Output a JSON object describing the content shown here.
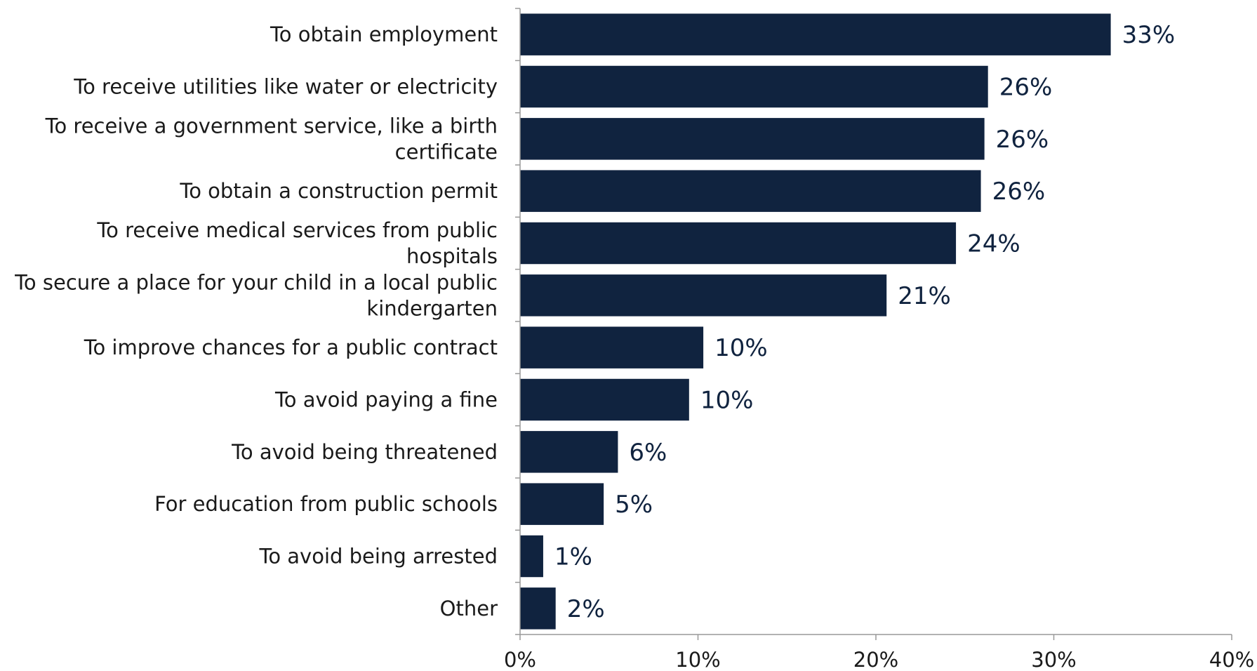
{
  "chart_data": {
    "type": "bar",
    "orientation": "horizontal",
    "categories": [
      "To obtain employment",
      "To receive utilities like water or electricity",
      "To receive a government service, like a birth certificate",
      "To obtain a construction permit",
      "To receive medical services from public hospitals",
      "To secure a place for your child in a local public kindergarten",
      "To improve chances for a public contract",
      "To avoid paying a fine",
      "To avoid being threatened",
      "For education from public schools",
      "To avoid being arrested",
      "Other"
    ],
    "category_lines": [
      [
        "To obtain employment"
      ],
      [
        "To receive utilities like water or electricity"
      ],
      [
        "To receive a government service, like a birth",
        "certificate"
      ],
      [
        "To obtain a construction permit"
      ],
      [
        "To receive medical services from public",
        "hospitals"
      ],
      [
        "To secure a place for your child in a local public",
        "kindergarten"
      ],
      [
        "To improve chances for a public contract"
      ],
      [
        "To avoid paying a fine"
      ],
      [
        "To avoid being threatened"
      ],
      [
        "For education from public schools"
      ],
      [
        "To avoid being arrested"
      ],
      [
        "Other"
      ]
    ],
    "values": [
      33.2,
      26.3,
      26.1,
      25.9,
      24.5,
      20.6,
      10.3,
      9.5,
      5.5,
      4.7,
      1.3,
      2.0
    ],
    "value_labels": [
      "33%",
      "26%",
      "26%",
      "26%",
      "24%",
      "21%",
      "10%",
      "10%",
      "6%",
      "5%",
      "1%",
      "2%"
    ],
    "xlim": [
      0,
      40
    ],
    "xticks": [
      0,
      10,
      20,
      30,
      40
    ],
    "xtick_labels": [
      "0%",
      "10%",
      "20%",
      "30%",
      "40%"
    ],
    "bar_color": "#10233f",
    "axis_color": "#999999",
    "grid": false,
    "legend": "none"
  }
}
